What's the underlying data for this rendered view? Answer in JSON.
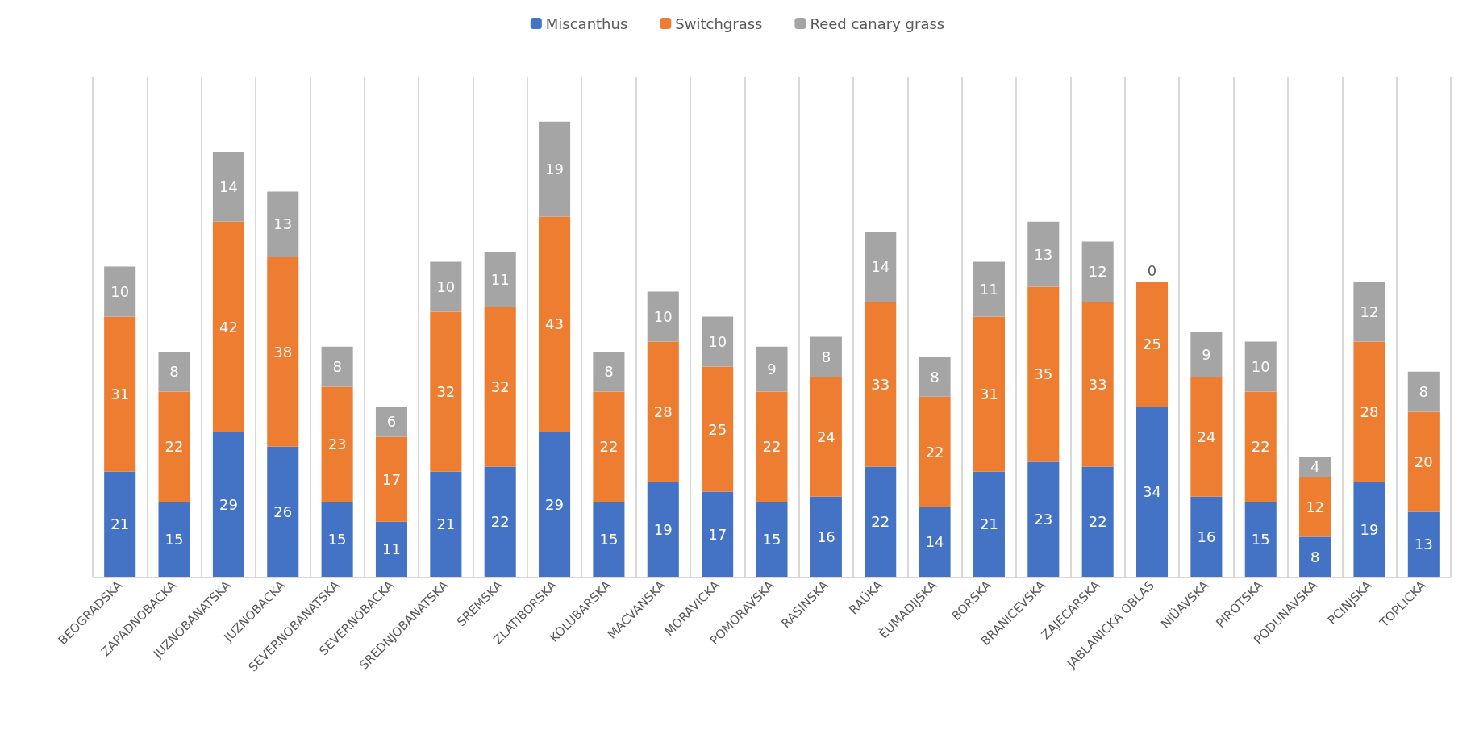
{
  "chart_data": {
    "type": "bar",
    "stacked": true,
    "data_labels": true,
    "grid": "x",
    "legend": "top",
    "tick_labels": "x",
    "categories": [
      "BEOGRADSKA",
      "ZAPADNOBACKA",
      "JUZNOBANATSKA",
      "JUZNOBACKA",
      "SEVERNOBANATSKA",
      "SEVERNOBACKA",
      "SREDNJOBANATSKA",
      "SREMSKA",
      "ZLATIBORSKA",
      "KOLUBARSKA",
      "MACVANSKA",
      "MORAVICKA",
      "POMORAVSKA",
      "RASINSKA",
      "RAÜKA",
      "ÈUMADIJSKA",
      "BORSKA",
      "BRANICEVSKA",
      "ZAJECARSKA",
      "JABLANICKA OBLAS",
      "NIÜAVSKA",
      "PIROTSKA",
      "PODUNAVSKA",
      "PCINJSKA",
      "TOPLICKA"
    ],
    "series": [
      {
        "name": "Miscanthus",
        "color": "#4472c4",
        "values": [
          21,
          15,
          29,
          26,
          15,
          11,
          21,
          22,
          29,
          15,
          19,
          17,
          15,
          16,
          22,
          14,
          21,
          23,
          22,
          34,
          16,
          15,
          8,
          19,
          13
        ]
      },
      {
        "name": "Switchgrass",
        "color": "#ed7d31",
        "values": [
          31,
          22,
          42,
          38,
          23,
          17,
          32,
          32,
          43,
          22,
          28,
          25,
          22,
          24,
          33,
          22,
          31,
          35,
          33,
          25,
          24,
          22,
          12,
          28,
          20
        ]
      },
      {
        "name": "Reed canary grass",
        "color": "#a5a5a5",
        "values": [
          10,
          8,
          14,
          13,
          8,
          6,
          10,
          11,
          19,
          8,
          10,
          10,
          9,
          8,
          14,
          8,
          11,
          13,
          12,
          0,
          9,
          10,
          4,
          12,
          8
        ]
      }
    ]
  }
}
